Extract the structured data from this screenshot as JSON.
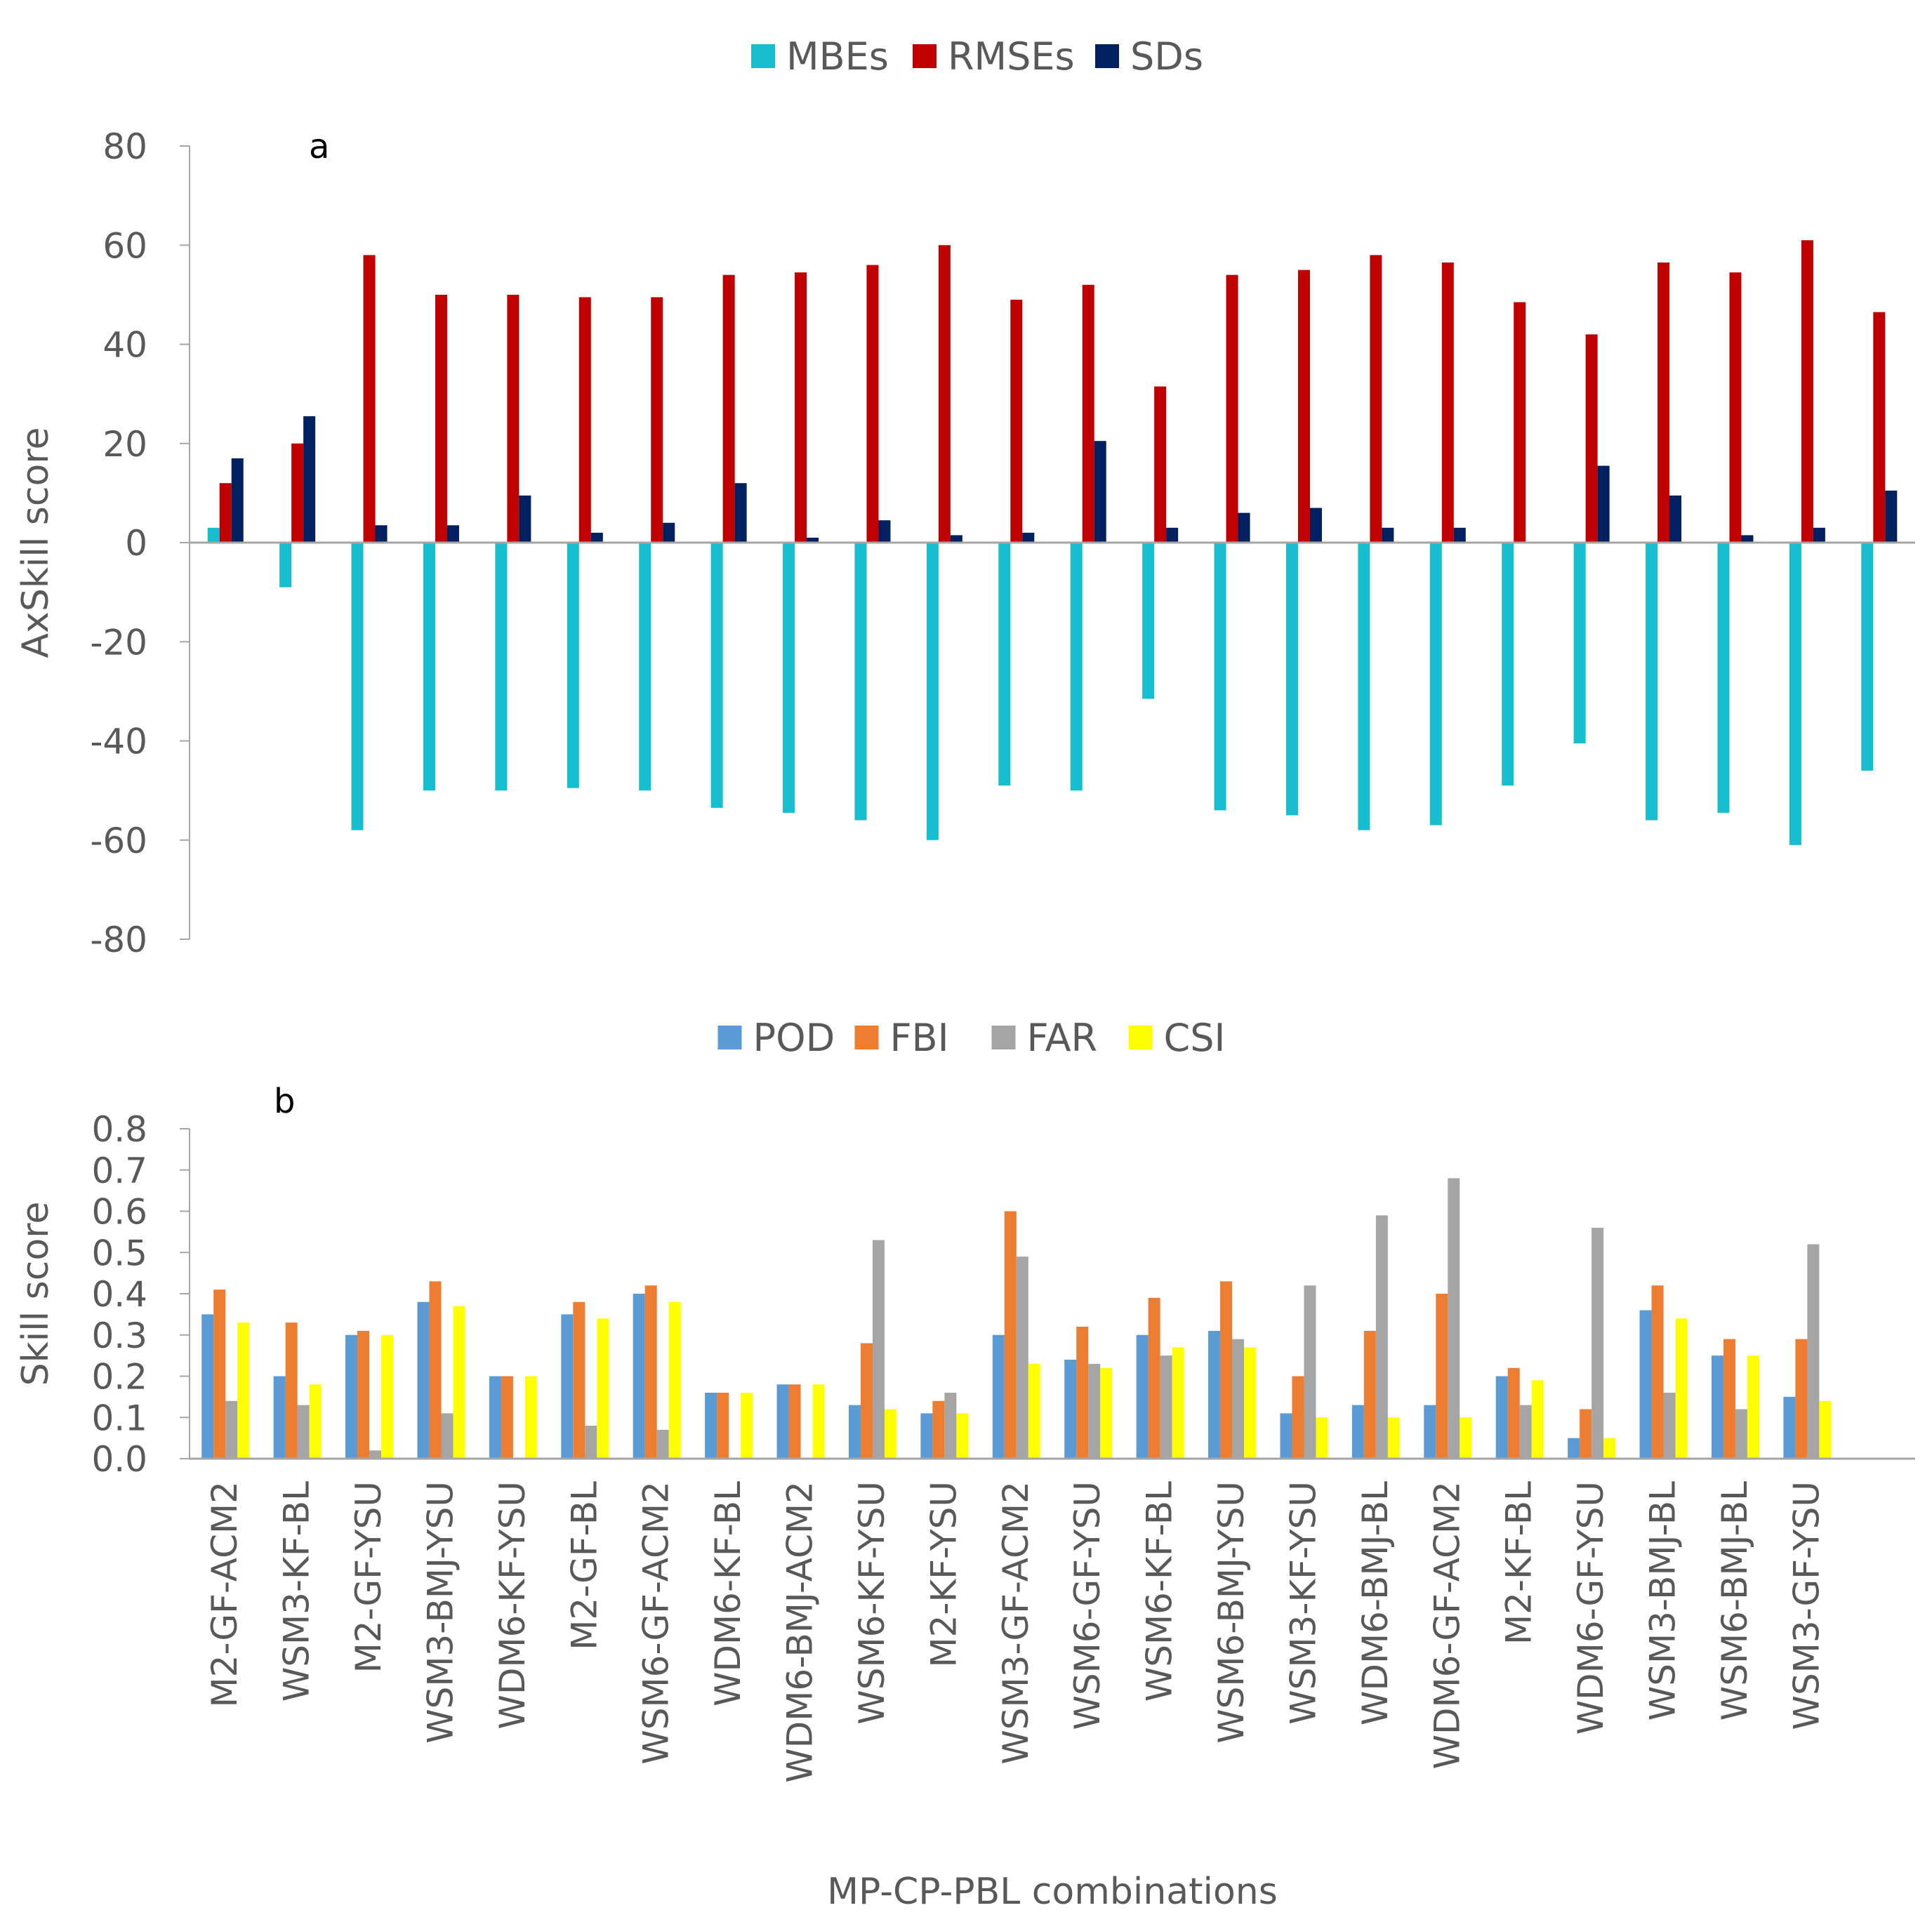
{
  "chart_data": [
    {
      "type": "bar",
      "panel_label": "a",
      "ylabel": "AxSkill score",
      "xlabel": "",
      "ylim": [
        -80,
        80
      ],
      "yticks": [
        80,
        60,
        40,
        20,
        0,
        -20,
        -40,
        -60,
        -80
      ],
      "legend": {
        "position": "top-center"
      },
      "series": [
        {
          "name": "MBEs",
          "color": "#17BECF",
          "values": [
            3,
            -9,
            -58,
            -50,
            -50,
            -49.5,
            -50,
            -53.5,
            -54.5,
            -56,
            -60,
            -49,
            -50,
            -31.5,
            -54,
            -55,
            -58,
            -57,
            -49,
            -40.5,
            -56,
            -54.5,
            -61,
            -46
          ]
        },
        {
          "name": "RMSEs",
          "color": "#C00000",
          "values": [
            12,
            20,
            58,
            50,
            50,
            49.5,
            49.5,
            54,
            54.5,
            56,
            60,
            49,
            52,
            31.5,
            54,
            55,
            58,
            56.5,
            48.5,
            42,
            56.5,
            54.5,
            61,
            46.5
          ]
        },
        {
          "name": "SDs",
          "color": "#002060",
          "values": [
            17,
            25.5,
            3.5,
            3.5,
            9.5,
            2,
            4,
            12,
            1,
            4.5,
            1.5,
            2,
            20.5,
            3,
            6,
            7,
            3,
            3,
            0,
            15.5,
            9.5,
            1.5,
            3,
            10.5
          ]
        }
      ]
    },
    {
      "type": "bar",
      "panel_label": "b",
      "ylabel": "Skill score",
      "xlabel": "MP-CP-PBL combinations",
      "ylim": [
        0,
        0.8
      ],
      "yticks": [
        "0.8",
        "0.7",
        "0.6",
        "0.5",
        "0.4",
        "0.3",
        "0.2",
        "0.1",
        "0.0"
      ],
      "legend": {
        "position": "top-center"
      },
      "categories": [
        "M2-GF-ACM2",
        "WSM3-KF-BL",
        "M2-GF-YSU",
        "WSM3-BMJ-YSU",
        "WDM6-KF-YSU",
        "M2-GF-BL",
        "WSM6-GF-ACM2",
        "WDM6-KF-BL",
        "WDM6-BMJ-ACM2",
        "WSM6-KF-YSU",
        "M2-KF-YSU",
        "WSM3-GF-ACM2",
        "WSM6-GF-YSU",
        "WSM6-KF-BL",
        "WSM6-BMJ-YSU",
        "WSM3-KF-YSU",
        "WDM6-BMJ-BL",
        "WDM6-GF-ACM2",
        "M2-KF-BL",
        "WDM6-GF-YSU",
        "WSM3-BMJ-BL",
        "WSM6-BMJ-BL",
        "WSM3-GF-YSU"
      ],
      "series": [
        {
          "name": "POD",
          "color": "#5B9BD5",
          "values": [
            0.35,
            0.2,
            0.3,
            0.38,
            0.2,
            0.35,
            0.4,
            0.16,
            0.18,
            0.13,
            0.11,
            0.3,
            0.24,
            0.3,
            0.31,
            0.11,
            0.13,
            0.13,
            0.2,
            0.05,
            0.36,
            0.25,
            0.15
          ]
        },
        {
          "name": "FBI",
          "color": "#ED7D31",
          "values": [
            0.41,
            0.33,
            0.31,
            0.43,
            0.2,
            0.38,
            0.42,
            0.16,
            0.18,
            0.28,
            0.14,
            0.6,
            0.32,
            0.39,
            0.43,
            0.2,
            0.31,
            0.4,
            0.22,
            0.12,
            0.42,
            0.29,
            0.29
          ]
        },
        {
          "name": "FAR",
          "color": "#A5A5A5",
          "values": [
            0.14,
            0.13,
            0.02,
            0.11,
            0.0,
            0.08,
            0.07,
            0.0,
            0.0,
            0.53,
            0.16,
            0.49,
            0.23,
            0.25,
            0.29,
            0.42,
            0.59,
            0.68,
            0.13,
            0.56,
            0.16,
            0.12,
            0.52
          ]
        },
        {
          "name": "CSI",
          "color": "#FFFF00",
          "values": [
            0.33,
            0.18,
            0.3,
            0.37,
            0.2,
            0.34,
            0.38,
            0.16,
            0.18,
            0.12,
            0.11,
            0.23,
            0.22,
            0.27,
            0.27,
            0.1,
            0.1,
            0.1,
            0.19,
            0.05,
            0.34,
            0.25,
            0.14
          ]
        }
      ]
    }
  ]
}
